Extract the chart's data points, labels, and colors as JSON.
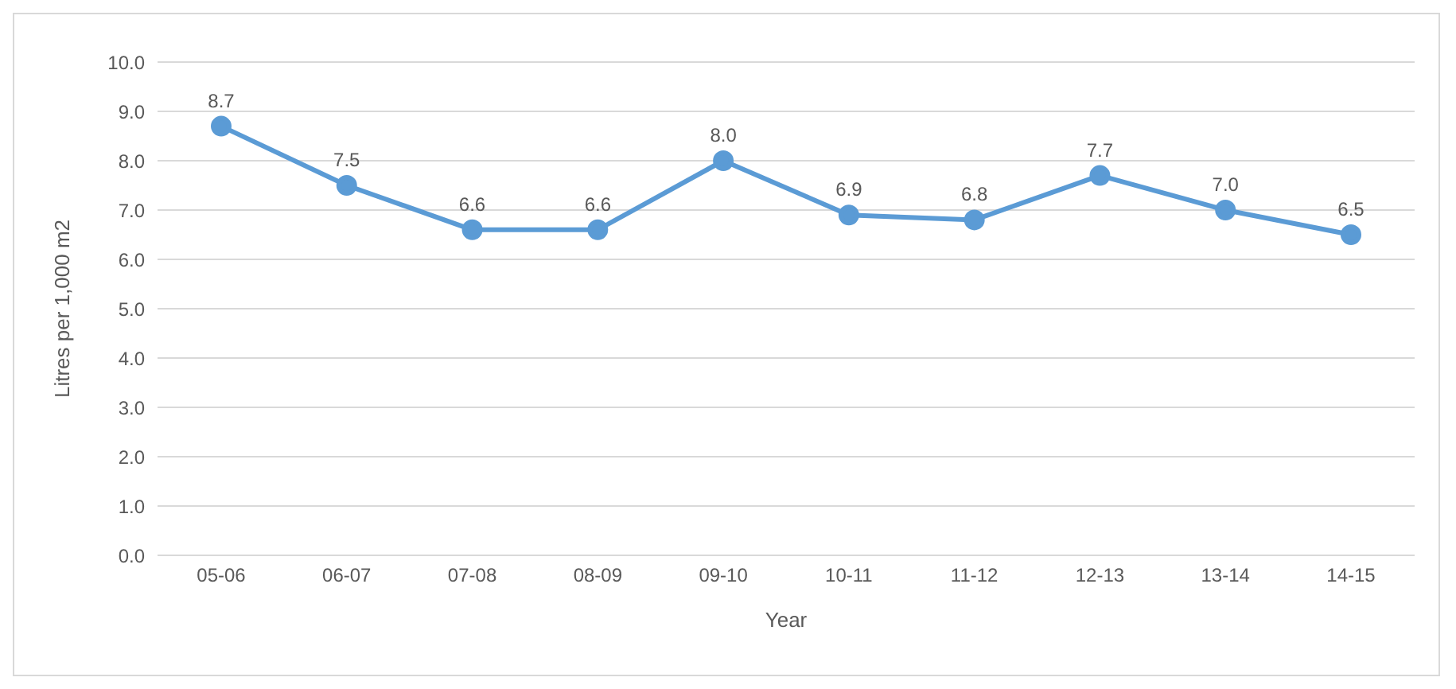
{
  "chart_data": {
    "type": "line",
    "xlabel": "Year",
    "ylabel": "Litres per 1,000 m2",
    "categories": [
      "05-06",
      "06-07",
      "07-08",
      "08-09",
      "09-10",
      "10-11",
      "11-12",
      "12-13",
      "13-14",
      "14-15"
    ],
    "series": [
      {
        "color": "#5b9bd5",
        "values": [
          8.7,
          7.5,
          6.6,
          6.6,
          8.0,
          6.9,
          6.8,
          7.7,
          7.0,
          6.5
        ],
        "value_labels": [
          "8.7",
          "7.5",
          "6.6",
          "6.6",
          "8.0",
          "6.9",
          "6.8",
          "7.7",
          "7.0",
          "6.5"
        ]
      }
    ],
    "ylim": [
      0,
      10
    ],
    "yticks": [
      {
        "value": 0,
        "label": "0.0"
      },
      {
        "value": 1,
        "label": "1.0"
      },
      {
        "value": 2,
        "label": "2.0"
      },
      {
        "value": 3,
        "label": "3.0"
      },
      {
        "value": 4,
        "label": "4.0"
      },
      {
        "value": 5,
        "label": "5.0"
      },
      {
        "value": 6,
        "label": "6.0"
      },
      {
        "value": 7,
        "label": "7.0"
      },
      {
        "value": 8,
        "label": "8.0"
      },
      {
        "value": 9,
        "label": "9.0"
      },
      {
        "value": 10,
        "label": "10.0"
      }
    ],
    "grid": "y",
    "marker": "circle",
    "line_style": "solid",
    "legend": false
  }
}
